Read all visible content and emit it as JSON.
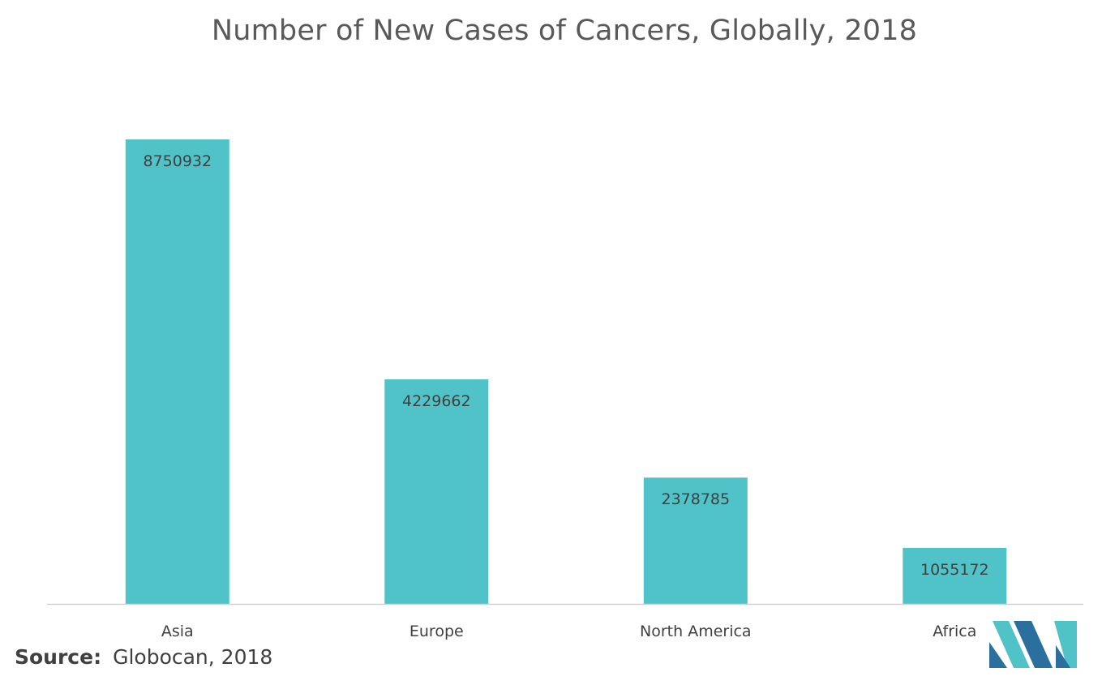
{
  "chart_data": {
    "type": "bar",
    "title": "Number of New Cases of Cancers, Globally, 2018",
    "categories": [
      "Asia",
      "Europe",
      "North America",
      "Africa"
    ],
    "values": [
      8750932,
      4229662,
      2378785,
      1055172
    ],
    "data_labels": [
      "8750932",
      "4229662",
      "2378785",
      "1055172"
    ],
    "xlabel": "",
    "ylabel": "",
    "ylim": [
      0,
      9600000
    ],
    "grid": false,
    "legend": "none",
    "bar_color": "#4fc3c8"
  },
  "source": {
    "label": "Source:",
    "text": "Globocan, 2018"
  },
  "logo": {
    "icon": "mordor-intelligence-logo-icon",
    "colors": [
      "#2a6f9e",
      "#4fc3c8"
    ]
  }
}
